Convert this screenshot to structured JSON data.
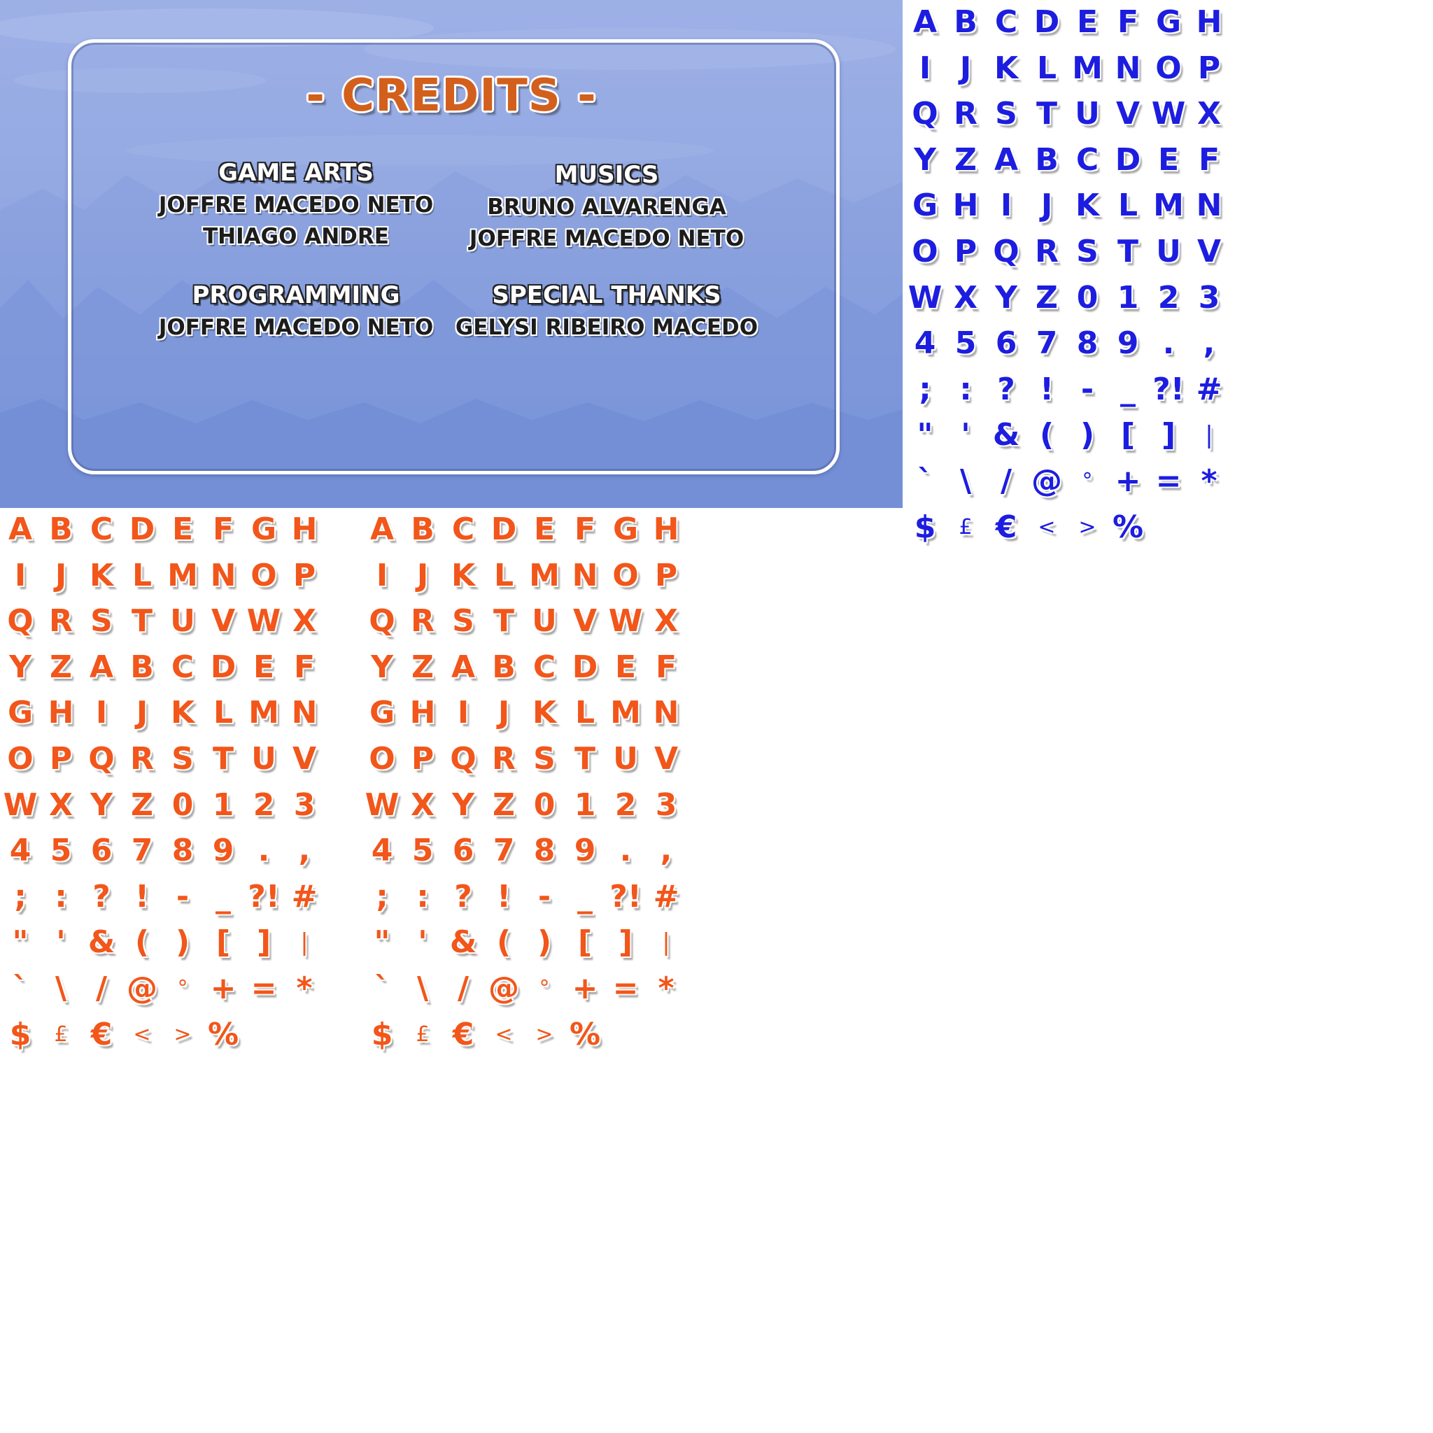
{
  "credits": {
    "title": "- CREDITS -",
    "game_arts": {
      "heading": "GAME ARTS",
      "names": [
        "JOFFRE MACEDO NETO",
        "THIAGO ANDRE"
      ]
    },
    "musics": {
      "heading": "MUSICS",
      "names": [
        "BRUNO ALVARENGA",
        "JOFFRE MACEDO NETO"
      ]
    },
    "programming": {
      "heading": "PROGRAMMING",
      "names": [
        "JOFFRE MACEDO NETO"
      ]
    },
    "special_thanks": {
      "heading": "SPECIAL THANKS",
      "names": [
        "GELYSI RIBEIRO MACEDO"
      ]
    }
  },
  "atlas_glyphs": [
    [
      "A",
      "B",
      "C",
      "D",
      "E",
      "F",
      "G",
      "H"
    ],
    [
      "I",
      "J",
      "K",
      "L",
      "M",
      "N",
      "O",
      "P"
    ],
    [
      "Q",
      "R",
      "S",
      "T",
      "U",
      "V",
      "W",
      "X"
    ],
    [
      "Y",
      "Z",
      "A",
      "B",
      "C",
      "D",
      "E",
      "F"
    ],
    [
      "G",
      "H",
      "I",
      "J",
      "K",
      "L",
      "M",
      "N"
    ],
    [
      "O",
      "P",
      "Q",
      "R",
      "S",
      "T",
      "U",
      "V"
    ],
    [
      "W",
      "X",
      "Y",
      "Z",
      "0",
      "1",
      "2",
      "3"
    ],
    [
      "4",
      "5",
      "6",
      "7",
      "8",
      "9",
      ".",
      ","
    ],
    [
      ";",
      ":",
      "?",
      "!",
      "-",
      "_",
      "?!",
      "#"
    ],
    [
      "\"",
      "'",
      "&",
      "(",
      ")",
      "[",
      "]",
      "|"
    ],
    [
      "`",
      "\\",
      "/",
      "@",
      "°",
      "+",
      "=",
      "*"
    ],
    [
      "$",
      "£",
      "€",
      "<",
      ">",
      "%"
    ]
  ],
  "colors": {
    "blue_glyph": "#1d1de0",
    "orange_glyph": "#f2561a",
    "title_orange": "#d2601c",
    "screen_bg": "#8fa6e0"
  }
}
